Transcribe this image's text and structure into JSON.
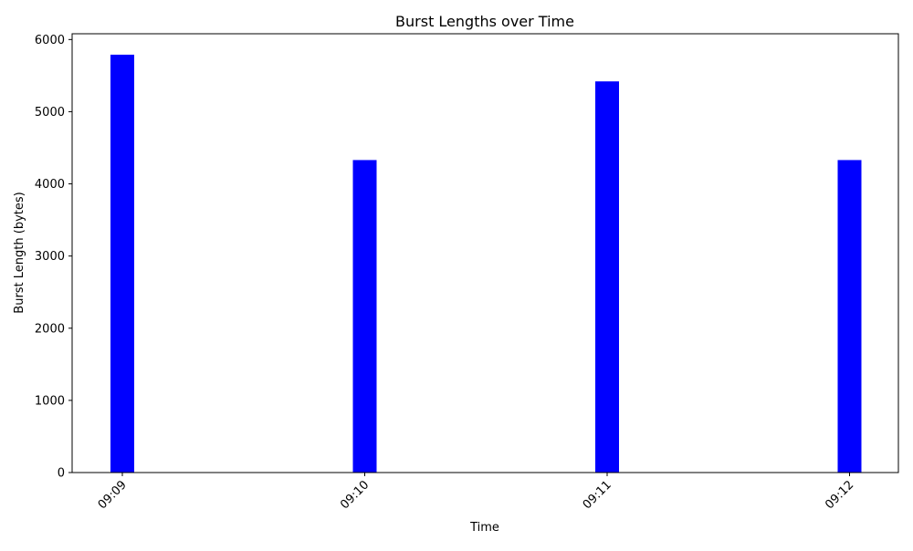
{
  "chart_data": {
    "type": "bar",
    "title": "Burst Lengths over Time",
    "xlabel": "Time",
    "ylabel": "Burst Length (bytes)",
    "categories": [
      "09:09",
      "09:10",
      "09:11",
      "09:12"
    ],
    "values": [
      5790,
      4330,
      5420,
      4330
    ],
    "ylim": [
      0,
      6080
    ],
    "yticks": [
      0,
      1000,
      2000,
      3000,
      4000,
      5000,
      6000
    ],
    "grid": false,
    "bar_color": "#0000ff"
  }
}
